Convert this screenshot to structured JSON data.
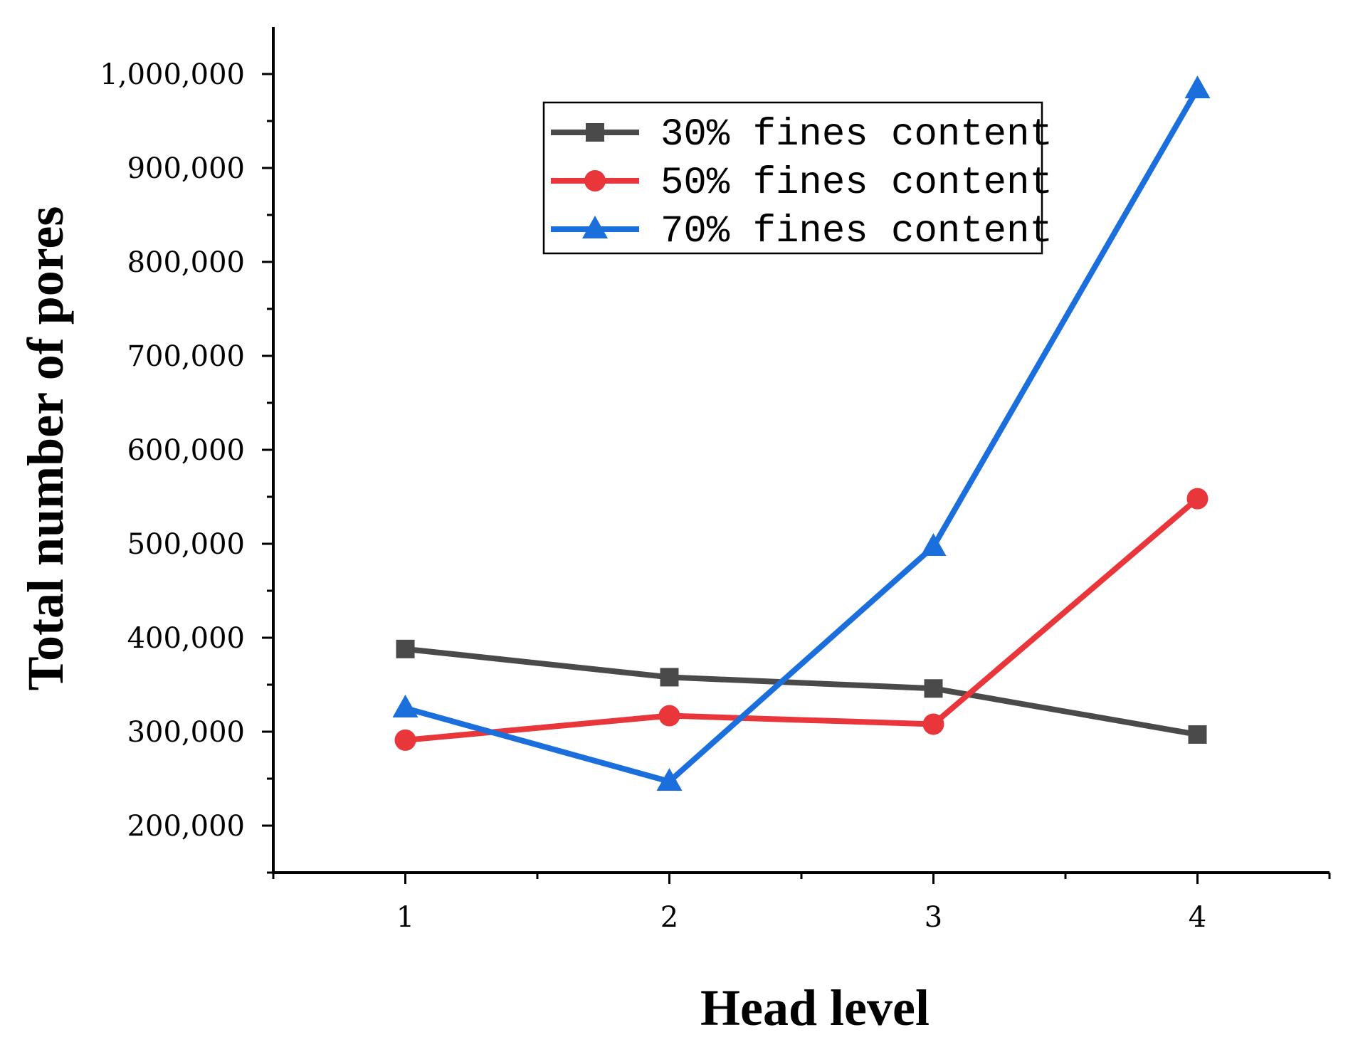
{
  "chart_data": {
    "type": "line",
    "title": "",
    "xlabel": "Head level",
    "ylabel": "Total number of pores",
    "x": [
      1,
      2,
      3,
      4
    ],
    "xlim": [
      0.5,
      4.5
    ],
    "ylim": [
      150000,
      1050000
    ],
    "xticks": [
      1,
      2,
      3,
      4
    ],
    "xtick_labels": [
      "1",
      "2",
      "3",
      "4"
    ],
    "yticks": [
      200000,
      300000,
      400000,
      500000,
      600000,
      700000,
      800000,
      900000,
      1000000
    ],
    "ytick_labels": [
      "200,000",
      "300,000",
      "400,000",
      "500,000",
      "600,000",
      "700,000",
      "800,000",
      "900,000",
      "1,000,000"
    ],
    "grid": false,
    "legend_position": "top-center",
    "series": [
      {
        "name": "30% fines content",
        "marker": "square",
        "color": "#4a4a4a",
        "values": [
          388000,
          358000,
          346000,
          297000
        ]
      },
      {
        "name": "50% fines content",
        "marker": "circle",
        "color": "#e8363a",
        "values": [
          291000,
          317000,
          308000,
          548000
        ]
      },
      {
        "name": "70% fines content",
        "marker": "triangle",
        "color": "#1a6fdc",
        "values": [
          325000,
          247000,
          497000,
          984000
        ]
      }
    ]
  }
}
